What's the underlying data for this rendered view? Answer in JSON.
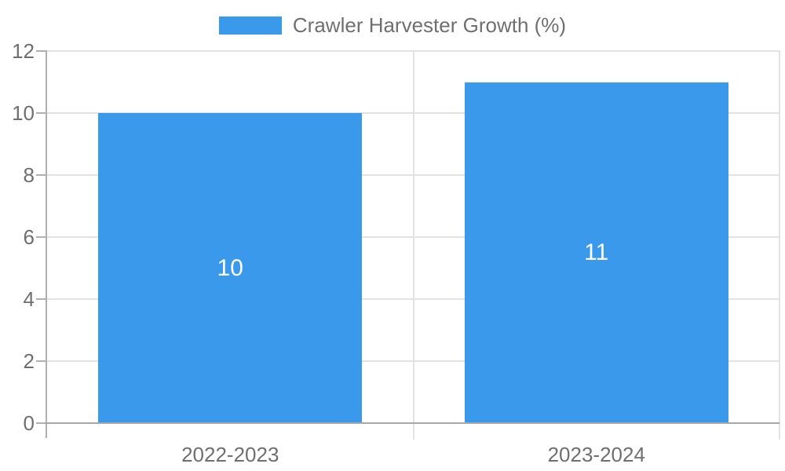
{
  "chart_data": {
    "type": "bar",
    "title": "Crawler Harvester Growth (%)",
    "categories": [
      "2022-2023",
      "2023-2024"
    ],
    "series": [
      {
        "name": "Crawler Harvester Growth (%)",
        "values": [
          10,
          11
        ]
      }
    ],
    "values": [
      10,
      11
    ],
    "bar_value_labels": [
      "10",
      "11"
    ],
    "xlabel": "",
    "ylabel": "",
    "ylim": [
      0,
      12
    ],
    "yticks": [
      0,
      2,
      4,
      6,
      8,
      10,
      12
    ],
    "grid": true,
    "legend_position": "top-center",
    "colors": {
      "bar": "#3b99ec",
      "bar_label": "#ffffff",
      "text": "#6f6f6f",
      "gridline": "#e2e2e2",
      "axis_line": "#b0b0b0",
      "baseline": "#a8a8a8",
      "background": "#ffffff"
    }
  },
  "legend": {
    "label": "Crawler Harvester Growth (%)",
    "swatch_icon": "legend-swatch"
  }
}
